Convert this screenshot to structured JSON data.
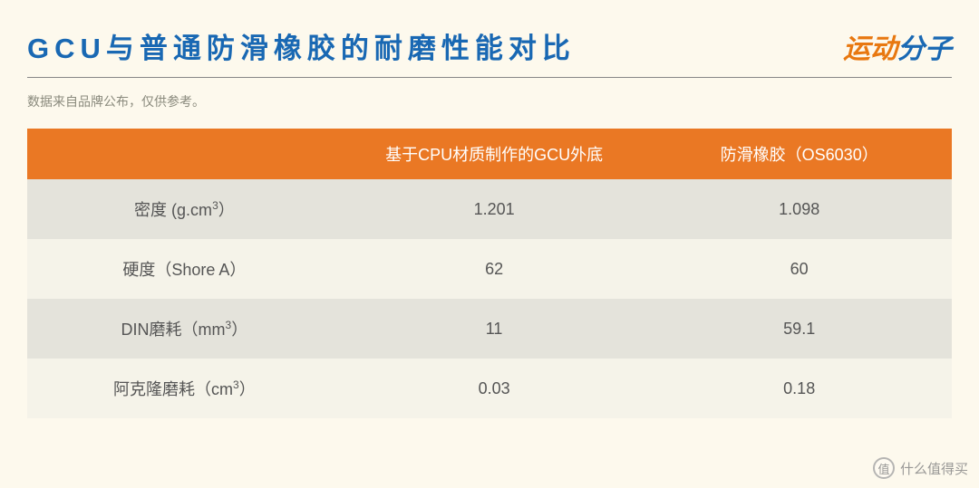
{
  "title": "GCU与普通防滑橡胶的耐磨性能对比",
  "brand": {
    "part1": "运动",
    "part2": "分子"
  },
  "note": "数据来自品牌公布，仅供参考。",
  "table": {
    "headers": [
      "",
      "基于CPU材质制作的GCU外底",
      "防滑橡胶（OS6030）"
    ],
    "row_labels_html": [
      "密度 (g.cm<sup>3</sup>）",
      "硬度（Shore A）",
      "DIN磨耗（mm<sup>3</sup>）",
      "阿克隆磨耗（cm<sup>3</sup>）"
    ],
    "rows": [
      [
        "1.201",
        "1.098"
      ],
      [
        "62",
        "60"
      ],
      [
        "11",
        "59.1"
      ],
      [
        "0.03",
        "0.18"
      ]
    ],
    "header_bg": "#ea7824",
    "header_fg": "#ffffff",
    "row_even_bg": "#e4e3db",
    "row_odd_bg": "#f5f3e9",
    "text_color": "#555555"
  },
  "colors": {
    "page_bg": "#fdf9ed",
    "title_color": "#1968b3",
    "brand_part1": "#e87810",
    "brand_part2": "#1968b3",
    "note_color": "#8a8a7d",
    "divider": "#888888"
  },
  "watermark": {
    "badge": "值",
    "text": "什么值得买"
  }
}
